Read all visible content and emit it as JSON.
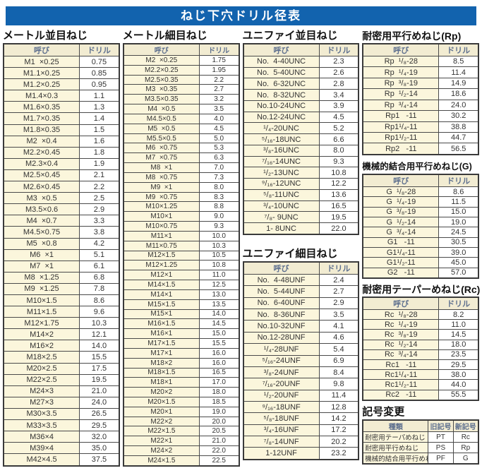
{
  "title": "ねじ下穴ドリル径表",
  "tables": {
    "metric_coarse": {
      "title": "メートル並目ねじ",
      "headers": [
        "呼び",
        "ドリル"
      ],
      "rows": [
        [
          "M1  ×0.25",
          "0.75"
        ],
        [
          "M1.1×0.25",
          "0.85"
        ],
        [
          "M1.2×0.25",
          "0.95"
        ],
        [
          "M1.4×0.3",
          "1.1"
        ],
        [
          "M1.6×0.35",
          "1.3"
        ],
        [
          "M1.7×0.35",
          "1.4"
        ],
        [
          "M1.8×0.35",
          "1.5"
        ],
        [
          "M2  ×0.4",
          "1.6"
        ],
        [
          "M2.2×0.45",
          "1.8"
        ],
        [
          "M2.3×0.4",
          "1.9"
        ],
        [
          "M2.5×0.45",
          "2.1"
        ],
        [
          "M2.6×0.45",
          "2.2"
        ],
        [
          "M3  ×0.5",
          "2.5"
        ],
        [
          "M3.5×0.6",
          "2.9"
        ],
        [
          "M4  ×0.7",
          "3.3"
        ],
        [
          "M4.5×0.75",
          "3.8"
        ],
        [
          "M5  ×0.8",
          "4.2"
        ],
        [
          "M6  ×1",
          "5.1"
        ],
        [
          "M7  ×1",
          "6.1"
        ],
        [
          "M8  ×1.25",
          "6.8"
        ],
        [
          "M9  ×1.25",
          "7.8"
        ],
        [
          "M10×1.5",
          "8.6"
        ],
        [
          "M11×1.5",
          "9.6"
        ],
        [
          "M12×1.75",
          "10.3"
        ],
        [
          "M14×2",
          "12.1"
        ],
        [
          "M16×2",
          "14.0"
        ],
        [
          "M18×2.5",
          "15.5"
        ],
        [
          "M20×2.5",
          "17.5"
        ],
        [
          "M22×2.5",
          "19.5"
        ],
        [
          "M24×3",
          "21.0"
        ],
        [
          "M27×3",
          "24.0"
        ],
        [
          "M30×3.5",
          "26.5"
        ],
        [
          "M33×3.5",
          "29.5"
        ],
        [
          "M36×4",
          "32.0"
        ],
        [
          "M39×4",
          "35.0"
        ],
        [
          "M42×4.5",
          "37.5"
        ]
      ]
    },
    "metric_fine": {
      "title": "メートル細目ねじ",
      "headers": [
        "呼び",
        "ドリル"
      ],
      "rows": [
        [
          "M2  ×0.25",
          "1.75"
        ],
        [
          "M2.2×0.25",
          "1.95"
        ],
        [
          "M2.5×0.35",
          "2.2"
        ],
        [
          "M3  ×0.35",
          "2.7"
        ],
        [
          "M3.5×0.35",
          "3.2"
        ],
        [
          "M4  ×0.5",
          "3.5"
        ],
        [
          "M4.5×0.5",
          "4.0"
        ],
        [
          "M5  ×0.5",
          "4.5"
        ],
        [
          "M5.5×0.5",
          "5.0"
        ],
        [
          "M6  ×0.75",
          "5.3"
        ],
        [
          "M7  ×0.75",
          "6.3"
        ],
        [
          "M8  ×1",
          "7.0"
        ],
        [
          "M8  ×0.75",
          "7.3"
        ],
        [
          "M9  ×1",
          "8.0"
        ],
        [
          "M9  ×0.75",
          "8.3"
        ],
        [
          "M10×1.25",
          "8.8"
        ],
        [
          "M10×1",
          "9.0"
        ],
        [
          "M10×0.75",
          "9.3"
        ],
        [
          "M11×1",
          "10.0"
        ],
        [
          "M11×0.75",
          "10.3"
        ],
        [
          "M12×1.5",
          "10.5"
        ],
        [
          "M12×1.25",
          "10.8"
        ],
        [
          "M12×1",
          "11.0"
        ],
        [
          "M14×1.5",
          "12.5"
        ],
        [
          "M14×1",
          "13.0"
        ],
        [
          "M15×1.5",
          "13.5"
        ],
        [
          "M15×1",
          "14.0"
        ],
        [
          "M16×1.5",
          "14.5"
        ],
        [
          "M16×1",
          "15.0"
        ],
        [
          "M17×1.5",
          "15.5"
        ],
        [
          "M17×1",
          "16.0"
        ],
        [
          "M18×2",
          "16.0"
        ],
        [
          "M18×1.5",
          "16.5"
        ],
        [
          "M18×1",
          "17.0"
        ],
        [
          "M20×2",
          "18.0"
        ],
        [
          "M20×1.5",
          "18.5"
        ],
        [
          "M20×1",
          "19.0"
        ],
        [
          "M22×2",
          "20.0"
        ],
        [
          "M22×1.5",
          "20.5"
        ],
        [
          "M22×1",
          "21.0"
        ],
        [
          "M24×2",
          "22.0"
        ],
        [
          "M24×1.5",
          "22.5"
        ]
      ]
    },
    "unified_coarse": {
      "title": "ユニファイ並目ねじ",
      "headers": [
        "呼び",
        "ドリル"
      ],
      "rows": [
        [
          "No.  4-40UNC",
          "2.3"
        ],
        [
          "No.  5-40UNC",
          "2.6"
        ],
        [
          "No.  6-32UNC",
          "2.8"
        ],
        [
          "No.  8-32UNC",
          "3.4"
        ],
        [
          "No.10-24UNC",
          "3.9"
        ],
        [
          "No.12-24UNC",
          "4.5"
        ],
        [
          "¹/₄-20UNC",
          "5.2"
        ],
        [
          "⁵/₁₆-18UNC",
          "6.6"
        ],
        [
          "³/₈-16UNC",
          "8.0"
        ],
        [
          "⁷/₁₆-14UNC",
          "9.3"
        ],
        [
          "¹/₂-13UNC",
          "10.8"
        ],
        [
          "⁹/₁₆-12UNC",
          "12.2"
        ],
        [
          "⁵/₈-11UNC",
          "13.6"
        ],
        [
          "³/₄-10UNC",
          "16.5"
        ],
        [
          "⁷/₈- 9UNC",
          "19.5"
        ],
        [
          "1- 8UNC",
          "22.0"
        ]
      ]
    },
    "unified_fine": {
      "title": "ユニファイ細目ねじ",
      "headers": [
        "呼び",
        "ドリル"
      ],
      "rows": [
        [
          "No.  4-48UNF",
          "2.4"
        ],
        [
          "No.  5-44UNF",
          "2.7"
        ],
        [
          "No.  6-40UNF",
          "2.9"
        ],
        [
          "No.  8-36UNF",
          "3.5"
        ],
        [
          "No.10-32UNF",
          "4.1"
        ],
        [
          "No.12-28UNF",
          "4.6"
        ],
        [
          "¹/₄-28UNF",
          "5.4"
        ],
        [
          "⁵/₁₆-24UNF",
          "6.9"
        ],
        [
          "³/₈-24UNF",
          "8.4"
        ],
        [
          "⁷/₁₆-20UNF",
          "9.8"
        ],
        [
          "¹/₂-20UNF",
          "11.4"
        ],
        [
          "⁹/₁₆-18UNF",
          "12.8"
        ],
        [
          "⁵/₈-18UNF",
          "14.2"
        ],
        [
          "³/₄-16UNF",
          "17.2"
        ],
        [
          "⁷/₈-14UNF",
          "20.2"
        ],
        [
          "1-12UNF",
          "23.2"
        ]
      ]
    },
    "rp": {
      "title": "耐密用平行めねじ(Rp)",
      "headers": [
        "呼び",
        "ドリル"
      ],
      "rows": [
        [
          "Rp  ¹/₈-28",
          "8.5"
        ],
        [
          "Rp  ¹/₄-19",
          "11.4"
        ],
        [
          "Rp  ³/₈-19",
          "14.9"
        ],
        [
          "Rp  ¹/₂-14",
          "18.6"
        ],
        [
          "Rp  ³/₄-14",
          "24.0"
        ],
        [
          "Rp1   -11",
          "30.2"
        ],
        [
          "Rp1¹/₄-11",
          "38.8"
        ],
        [
          "Rp1¹/₂-11",
          "44.7"
        ],
        [
          "Rp2   -11",
          "56.5"
        ]
      ]
    },
    "g": {
      "title": "機械的結合用平行めねじ(G)",
      "headers": [
        "呼び",
        "ドリル"
      ],
      "rows": [
        [
          "G  ¹/₈-28",
          "8.6"
        ],
        [
          "G  ¹/₄-19",
          "11.5"
        ],
        [
          "G  ³/₈-19",
          "15.0"
        ],
        [
          "G  ¹/₂-14",
          "19.0"
        ],
        [
          "G  ³/₄-14",
          "24.5"
        ],
        [
          "G1   -11",
          "30.5"
        ],
        [
          "G1¹/₄-11",
          "39.0"
        ],
        [
          "G1¹/₂-11",
          "45.0"
        ],
        [
          "G2   -11",
          "57.0"
        ]
      ]
    },
    "rc": {
      "title": "耐密用テーパーめねじ(Rc)",
      "headers": [
        "呼び",
        "ドリル"
      ],
      "rows": [
        [
          "Rc  ¹/₈-28",
          "8.2"
        ],
        [
          "Rc  ¹/₄-19",
          "11.0"
        ],
        [
          "Rc  ³/₈-19",
          "14.5"
        ],
        [
          "Rc  ¹/₂-14",
          "18.0"
        ],
        [
          "Rc  ³/₄-14",
          "23.5"
        ],
        [
          "Rc1   -11",
          "29.5"
        ],
        [
          "Rc1¹/₄-11",
          "38.0"
        ],
        [
          "Rc1¹/₂-11",
          "44.0"
        ],
        [
          "Rc2   -11",
          "55.5"
        ]
      ]
    },
    "symbols": {
      "title": "記号変更",
      "headers": [
        "種類",
        "旧記号",
        "新記号"
      ],
      "rows": [
        [
          "耐密用テーパめねじ",
          "PT",
          "Rc"
        ],
        [
          "耐密用平行めねじ",
          "PS",
          "Rp"
        ],
        [
          "機械的結合用平行めねじ",
          "PF",
          "G"
        ]
      ]
    }
  }
}
